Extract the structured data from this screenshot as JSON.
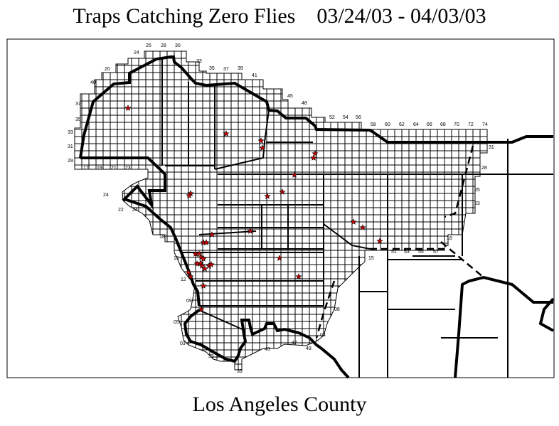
{
  "title": "Traps Catching Zero Flies    03/24/03 - 04/03/03",
  "subtitle": "Los Angeles County",
  "colors": {
    "grid": "#000000",
    "boundary": "#000000",
    "trap_marker": "#d00000",
    "background": "#ffffff"
  },
  "marker_icon": "red-star",
  "grid_labels": [
    "25",
    "28",
    "30",
    "24",
    "33",
    "35",
    "37",
    "39",
    "41",
    "45",
    "48",
    "52",
    "54",
    "56",
    "58",
    "60",
    "62",
    "64",
    "66",
    "68",
    "70",
    "72",
    "74",
    "20",
    "40",
    "37",
    "35",
    "33",
    "31",
    "29",
    "17",
    "19",
    "21",
    "23",
    "24",
    "22",
    "24",
    "18",
    "15",
    "12",
    "09",
    "05",
    "03",
    "35",
    "39",
    "43",
    "47",
    "49",
    "04",
    "08",
    "15",
    "51",
    "53",
    "55",
    "57",
    "18",
    "23",
    "25",
    "28",
    "31"
  ]
}
